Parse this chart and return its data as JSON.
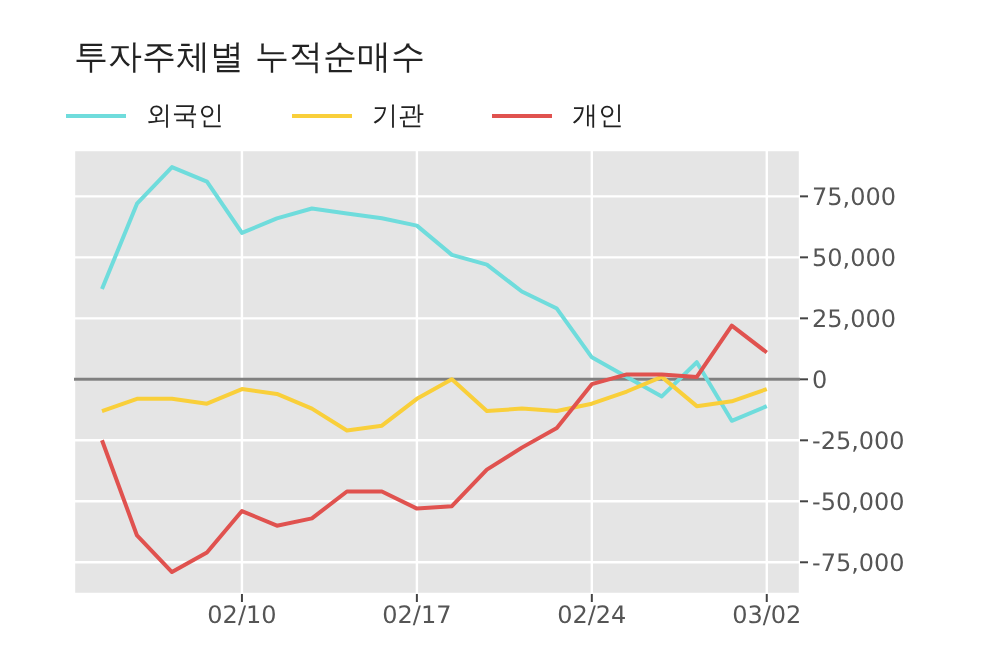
{
  "chart_data": {
    "type": "line",
    "title": "투자주체별 누적순매수",
    "categories": [
      null,
      null,
      null,
      null,
      "02/10",
      null,
      null,
      null,
      null,
      "02/17",
      null,
      null,
      null,
      null,
      "02/24",
      null,
      null,
      null,
      null,
      "03/02"
    ],
    "series": [
      {
        "name": "외국인",
        "color": "#6fdcdc",
        "values": [
          37000,
          72000,
          87000,
          81000,
          60000,
          66000,
          70000,
          68000,
          66000,
          63000,
          51000,
          47000,
          36000,
          29000,
          9000,
          1000,
          -7000,
          7000,
          -17000,
          -11000
        ]
      },
      {
        "name": "기관",
        "color": "#f9cf3a",
        "values": [
          -13000,
          -8000,
          -8000,
          -10000,
          -4000,
          -6000,
          -12000,
          -21000,
          -19000,
          -8000,
          0,
          -13000,
          -12000,
          -13000,
          -10000,
          -5000,
          1000,
          -11000,
          -9000,
          -4000
        ]
      },
      {
        "name": "개인",
        "color": "#e0524f",
        "values": [
          -25000,
          -64000,
          -79000,
          -71000,
          -54000,
          -60000,
          -57000,
          -46000,
          -46000,
          -53000,
          -52000,
          -37000,
          -28000,
          -20000,
          -2000,
          2000,
          2000,
          1000,
          22000,
          11000
        ]
      }
    ],
    "ylim": [
      -88000,
      94000
    ],
    "yticks": [
      {
        "value": -75000,
        "label": "-75,000"
      },
      {
        "value": -50000,
        "label": "-50,000"
      },
      {
        "value": -25000,
        "label": "-25,000"
      },
      0,
      {
        "value": 25000,
        "label": "25,000"
      },
      {
        "value": 50000,
        "label": "50,000"
      },
      {
        "value": 75000,
        "label": "75,000"
      }
    ],
    "ref_lines": [
      {
        "axis": "y",
        "value": 0,
        "color": "#808080"
      }
    ],
    "grid": true,
    "legend": "top left",
    "marker": "none",
    "line_style": "solid"
  }
}
